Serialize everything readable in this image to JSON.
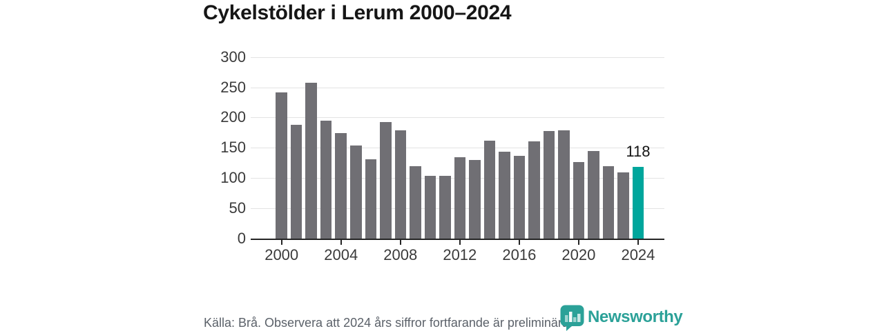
{
  "title": "Cykelstölder i Lerum 2000–2024",
  "footer": {
    "source_note": "Källa: Brå. Observera att 2024 års siffror fortfarande är preliminära."
  },
  "branding": {
    "logo_text": "Newsworthy",
    "logo_icon": "newsworthy-speech-bubble-bar-chart-icon",
    "brand_color": "#2ba198"
  },
  "colors": {
    "background": "#ffffff",
    "title_text": "#161616",
    "bar_default": "#706f74",
    "bar_highlight": "#00a69c",
    "gridline": "#e3e3e3",
    "axis": "#242424",
    "axis_label": "#3a3a3a",
    "value_label": "#141414",
    "footer_text": "#5b6169"
  },
  "chart_data": {
    "type": "bar",
    "title": "Cykelstölder i Lerum 2000–2024",
    "x": [
      2000,
      2001,
      2002,
      2003,
      2004,
      2005,
      2006,
      2007,
      2008,
      2009,
      2010,
      2011,
      2012,
      2013,
      2014,
      2015,
      2016,
      2017,
      2018,
      2019,
      2020,
      2021,
      2022,
      2023,
      2024
    ],
    "values": [
      242,
      188,
      257,
      195,
      174,
      154,
      131,
      192,
      179,
      120,
      104,
      104,
      134,
      130,
      162,
      144,
      137,
      161,
      178,
      179,
      127,
      145,
      120,
      109,
      118
    ],
    "highlight": {
      "x": 2024,
      "label": "118"
    },
    "ylim": [
      0,
      300
    ],
    "yticks": [
      0,
      50,
      100,
      150,
      200,
      250,
      300
    ],
    "xticks": [
      2000,
      2004,
      2008,
      2012,
      2016,
      2020,
      2024
    ],
    "grid": "horizontal-only",
    "legend": "none",
    "xlabel": "",
    "ylabel": ""
  }
}
